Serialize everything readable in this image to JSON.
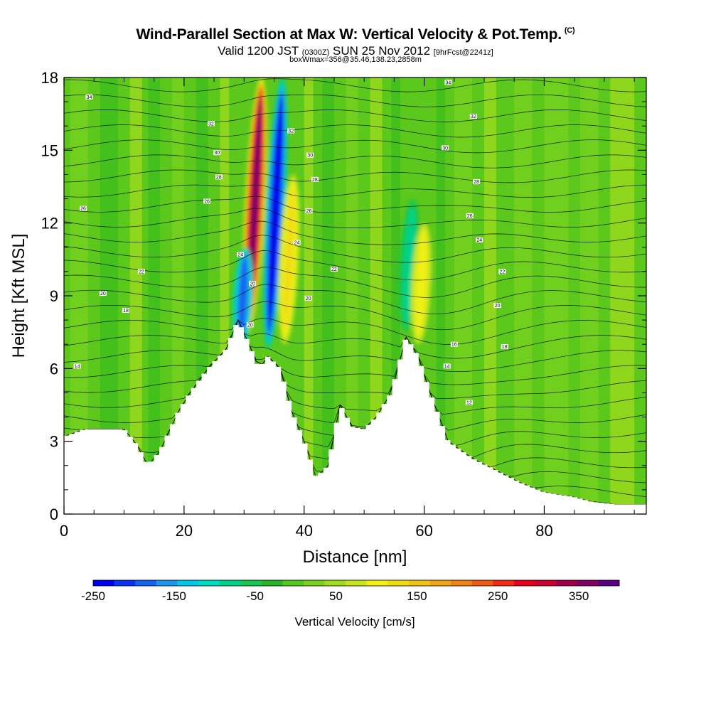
{
  "chart_data": {
    "type": "heatmap",
    "title": "Wind-Parallel Section at Max W: Vertical Velocity & Pot.Temp.",
    "title_mark": "(C)",
    "subtitle_prefix": "Valid 1200 JST",
    "subtitle_zulu": "(0300Z)",
    "subtitle_date": "SUN 25 Nov 2012",
    "subtitle_fcst": "[9hrFcst@2241z]",
    "subtitle2": "boxWmax=356@35.46,138.23,2858m",
    "xlabel": "Distance [nm]",
    "ylabel": "Height [Kft MSL]",
    "xlim": [
      0,
      97
    ],
    "ylim": [
      0,
      18
    ],
    "xticks": [
      0,
      20,
      40,
      60,
      80
    ],
    "yticks": [
      0,
      3,
      6,
      9,
      12,
      15,
      18
    ],
    "colorbar": {
      "title": "Vertical Velocity [cm/s]",
      "min": -250,
      "max": 400,
      "tick_labels": [
        "-250",
        "-150",
        "-50",
        "50",
        "150",
        "250",
        "350"
      ],
      "colors": [
        "#0000ee",
        "#0a32f0",
        "#1464f0",
        "#1e96f0",
        "#00c8e6",
        "#00dcc0",
        "#00d28c",
        "#14c850",
        "#28b428",
        "#50c81e",
        "#78d21e",
        "#a0dc1e",
        "#c8e61e",
        "#f0f014",
        "#f0dc14",
        "#f0c314",
        "#f0a514",
        "#f08214",
        "#f05a14",
        "#f02814",
        "#e6001e",
        "#c80032",
        "#a0004b",
        "#820064",
        "#5a0082"
      ]
    },
    "terrain_profile": {
      "x": [
        0,
        3.5,
        10,
        12,
        14,
        16,
        19,
        21,
        24,
        27,
        29,
        31,
        32.5,
        34,
        36,
        38,
        40,
        42,
        44,
        46,
        48,
        50,
        52,
        54.5,
        57,
        59,
        61,
        64,
        68,
        72,
        76,
        80,
        85,
        88,
        92,
        97
      ],
      "y": [
        3.2,
        3.5,
        3.5,
        2.9,
        2.0,
        2.6,
        4.2,
        5.0,
        6.0,
        6.8,
        8.0,
        6.9,
        6.0,
        6.5,
        6.0,
        4.2,
        3.0,
        1.5,
        2.0,
        4.5,
        3.6,
        3.5,
        4.0,
        5.0,
        7.3,
        6.5,
        5.0,
        3.0,
        2.3,
        1.8,
        1.3,
        0.9,
        0.7,
        0.5,
        0.4,
        0.4
      ]
    },
    "vertical_velocity_features": [
      {
        "label": "updraft",
        "x": 31.8,
        "y_range": [
          7.5,
          18
        ],
        "w_cms": 356
      },
      {
        "label": "downdraft",
        "x": 35.2,
        "y_range": [
          6.8,
          18
        ],
        "w_cms": -240
      },
      {
        "label": "downdraft",
        "x": 29.8,
        "y_range": [
          6.8,
          11
        ],
        "w_cms": -180
      },
      {
        "label": "updraft",
        "x": 37.5,
        "y_range": [
          7,
          14
        ],
        "w_cms": 120
      },
      {
        "label": "downdraft",
        "x": 57.5,
        "y_range": [
          7.5,
          13
        ],
        "w_cms": -80
      },
      {
        "label": "updraft",
        "x": 59.5,
        "y_range": [
          7,
          12
        ],
        "w_cms": 110
      }
    ],
    "theta_contour_labels": [
      {
        "text": "34",
        "x": 4.2,
        "y": 17.2
      },
      {
        "text": "32",
        "x": 24.5,
        "y": 16.1
      },
      {
        "text": "30",
        "x": 25.5,
        "y": 14.9
      },
      {
        "text": "28",
        "x": 25.8,
        "y": 13.9
      },
      {
        "text": "26",
        "x": 23.8,
        "y": 12.9
      },
      {
        "text": "26",
        "x": 3.2,
        "y": 12.6
      },
      {
        "text": "24",
        "x": 29.4,
        "y": 10.7
      },
      {
        "text": "22",
        "x": 12.9,
        "y": 10.0
      },
      {
        "text": "20",
        "x": 6.5,
        "y": 9.1
      },
      {
        "text": "18",
        "x": 10.3,
        "y": 8.4
      },
      {
        "text": "14",
        "x": 2.2,
        "y": 6.1
      },
      {
        "text": "20",
        "x": 31.4,
        "y": 9.5
      },
      {
        "text": "20",
        "x": 31.0,
        "y": 7.8
      },
      {
        "text": "32",
        "x": 37.8,
        "y": 15.8
      },
      {
        "text": "30",
        "x": 41.0,
        "y": 14.8
      },
      {
        "text": "28",
        "x": 41.8,
        "y": 13.8
      },
      {
        "text": "26",
        "x": 40.8,
        "y": 12.5
      },
      {
        "text": "24",
        "x": 38.8,
        "y": 11.2
      },
      {
        "text": "22",
        "x": 45.0,
        "y": 10.1
      },
      {
        "text": "20",
        "x": 40.7,
        "y": 8.9
      },
      {
        "text": "34",
        "x": 64.0,
        "y": 17.8
      },
      {
        "text": "32",
        "x": 68.2,
        "y": 16.4
      },
      {
        "text": "30",
        "x": 63.5,
        "y": 15.1
      },
      {
        "text": "28",
        "x": 68.7,
        "y": 13.7
      },
      {
        "text": "26",
        "x": 67.6,
        "y": 12.3
      },
      {
        "text": "24",
        "x": 69.2,
        "y": 11.3
      },
      {
        "text": "22",
        "x": 73.0,
        "y": 10.0
      },
      {
        "text": "20",
        "x": 72.2,
        "y": 8.6
      },
      {
        "text": "18",
        "x": 73.4,
        "y": 6.9
      },
      {
        "text": "16",
        "x": 65.0,
        "y": 7.0
      },
      {
        "text": "14",
        "x": 63.8,
        "y": 6.1
      },
      {
        "text": "12",
        "x": 67.5,
        "y": 4.6
      }
    ]
  }
}
